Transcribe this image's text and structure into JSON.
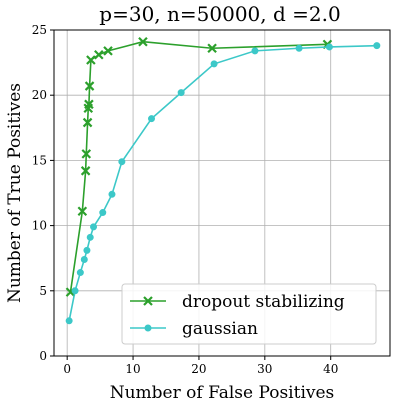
{
  "chart_data": {
    "type": "line",
    "title": "p=30, n=50000, d =2.0",
    "xlabel": "Number of False Positives",
    "ylabel": "Number of True Positives",
    "xlim": [
      -2,
      49
    ],
    "ylim": [
      0,
      25
    ],
    "xticks": [
      0,
      10,
      20,
      30,
      40
    ],
    "yticks": [
      0,
      5,
      10,
      15,
      20,
      25
    ],
    "grid": true,
    "legend_position": "lower-right",
    "series": [
      {
        "name": "dropout stabilizing",
        "color": "#2ca02c",
        "marker": "x",
        "x": [
          0.5,
          2.3,
          2.8,
          2.9,
          3.1,
          3.2,
          3.3,
          3.4,
          3.6,
          4.8,
          6.2,
          11.5,
          22.0,
          39.5
        ],
        "y": [
          4.9,
          11.1,
          14.2,
          15.5,
          17.9,
          19.0,
          19.3,
          20.7,
          22.7,
          23.1,
          23.4,
          24.1,
          23.6,
          23.9
        ]
      },
      {
        "name": "gaussian",
        "color": "#3cc8c8",
        "marker": "circle",
        "x": [
          0.3,
          1.2,
          2.0,
          2.6,
          3.0,
          3.5,
          4.0,
          5.4,
          6.8,
          8.3,
          12.8,
          17.3,
          22.3,
          28.5,
          35.2,
          39.8,
          47.0
        ],
        "y": [
          2.7,
          5.0,
          6.4,
          7.4,
          8.1,
          9.1,
          9.9,
          11.0,
          12.4,
          14.9,
          18.2,
          20.2,
          22.4,
          23.4,
          23.6,
          23.7,
          23.8
        ]
      }
    ]
  }
}
